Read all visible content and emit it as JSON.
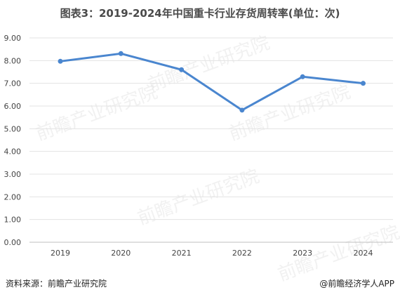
{
  "header": {
    "title": "图表3：2019-2024年中国重卡行业存货周转率(单位：次)"
  },
  "chart_data": {
    "type": "line",
    "categories": [
      "2019",
      "2020",
      "2021",
      "2022",
      "2023",
      "2024"
    ],
    "series": [
      {
        "values": [
          7.97,
          8.31,
          7.6,
          5.82,
          7.29,
          7.0
        ]
      }
    ],
    "ylim": [
      0,
      9
    ],
    "yticks": [
      "0.00",
      "1.00",
      "2.00",
      "3.00",
      "4.00",
      "5.00",
      "6.00",
      "7.00",
      "8.00",
      "9.00"
    ],
    "grid": true,
    "line_color": "#4a86cf"
  },
  "footer": {
    "source": "资料来源：前瞻产业研究院",
    "brand": "@前瞻经济学人APP"
  },
  "watermark": {
    "text": "前瞻产业研究院"
  }
}
